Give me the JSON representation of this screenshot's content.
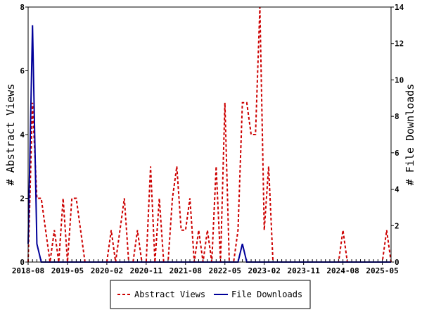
{
  "chart_data": {
    "type": "line",
    "title": "",
    "x_tick_labels": [
      "2018-08",
      "2019-05",
      "2020-02",
      "2020-11",
      "2021-08",
      "2022-05",
      "2023-02",
      "2023-11",
      "2024-08",
      "2025-05"
    ],
    "y_left": {
      "label": "# Abstract Views",
      "ylim": [
        0,
        8
      ],
      "ticks": [
        0,
        2,
        4,
        6,
        8
      ]
    },
    "y_right": {
      "label": "# File Downloads",
      "ylim": [
        0,
        14
      ],
      "ticks": [
        0,
        2,
        4,
        6,
        8,
        10,
        12,
        14
      ]
    },
    "x_start": "2018-08",
    "x_end": "2025-07",
    "legend_position": "bottom-center",
    "series": [
      {
        "name": "Abstract Views",
        "axis": "left",
        "color": "#cc0000",
        "style": "dashed",
        "x": [
          "2018-08",
          "2018-09",
          "2018-10",
          "2018-11",
          "2018-12",
          "2019-01",
          "2019-02",
          "2019-03",
          "2019-04",
          "2019-05",
          "2019-06",
          "2019-07",
          "2019-08",
          "2019-09",
          "2019-10",
          "2019-11",
          "2019-12",
          "2020-01",
          "2020-02",
          "2020-03",
          "2020-04",
          "2020-05",
          "2020-06",
          "2020-07",
          "2020-08",
          "2020-09",
          "2020-10",
          "2020-11",
          "2020-12",
          "2021-01",
          "2021-02",
          "2021-03",
          "2021-04",
          "2021-05",
          "2021-06",
          "2021-07",
          "2021-08",
          "2021-09",
          "2021-10",
          "2021-11",
          "2021-12",
          "2022-01",
          "2022-02",
          "2022-03",
          "2022-04",
          "2022-05",
          "2022-06",
          "2022-07",
          "2022-08",
          "2022-09",
          "2022-10",
          "2022-11",
          "2022-12",
          "2023-01",
          "2023-02",
          "2023-03",
          "2023-04",
          "2023-05",
          "2023-06",
          "2023-07",
          "2023-08",
          "2023-09",
          "2023-10",
          "2023-11",
          "2023-12",
          "2024-01",
          "2024-02",
          "2024-03",
          "2024-04",
          "2024-05",
          "2024-06",
          "2024-07",
          "2024-08",
          "2024-09",
          "2024-10",
          "2024-11",
          "2024-12",
          "2025-01",
          "2025-02",
          "2025-03",
          "2025-04",
          "2025-05",
          "2025-06",
          "2025-07"
        ],
        "values": [
          0,
          5,
          2,
          2,
          1,
          0,
          1,
          0,
          2,
          0,
          2,
          2,
          1,
          0,
          0,
          0,
          0,
          0,
          0,
          1,
          0,
          1,
          2,
          0,
          0,
          1,
          0,
          0,
          3,
          0,
          2,
          0,
          0,
          2,
          3,
          1,
          1,
          2,
          0,
          1,
          0,
          1,
          0,
          3,
          0,
          5,
          0,
          0,
          1,
          5,
          5,
          4,
          4,
          8,
          1,
          3,
          0,
          0,
          0,
          0,
          0,
          0,
          0,
          0,
          0,
          0,
          0,
          0,
          0,
          0,
          0,
          0,
          1,
          0,
          0,
          0,
          0,
          0,
          0,
          0,
          0,
          0,
          1,
          0
        ]
      },
      {
        "name": "File Downloads",
        "axis": "right",
        "color": "#000099",
        "style": "solid",
        "x": [
          "2018-08",
          "2018-09",
          "2018-10",
          "2018-11",
          "2018-12",
          "2019-01",
          "2019-02",
          "2019-03",
          "2019-04",
          "2019-05",
          "2019-06",
          "2019-07",
          "2019-08",
          "2019-09",
          "2019-10",
          "2019-11",
          "2019-12",
          "2020-01",
          "2020-02",
          "2020-03",
          "2020-04",
          "2020-05",
          "2020-06",
          "2020-07",
          "2020-08",
          "2020-09",
          "2020-10",
          "2020-11",
          "2020-12",
          "2021-01",
          "2021-02",
          "2021-03",
          "2021-04",
          "2021-05",
          "2021-06",
          "2021-07",
          "2021-08",
          "2021-09",
          "2021-10",
          "2021-11",
          "2021-12",
          "2022-01",
          "2022-02",
          "2022-03",
          "2022-04",
          "2022-05",
          "2022-06",
          "2022-07",
          "2022-08",
          "2022-09",
          "2022-10",
          "2022-11",
          "2022-12",
          "2023-01",
          "2023-02",
          "2023-03",
          "2023-04",
          "2023-05",
          "2023-06",
          "2023-07",
          "2023-08",
          "2023-09",
          "2023-10",
          "2023-11",
          "2023-12",
          "2024-01",
          "2024-02",
          "2024-03",
          "2024-04",
          "2024-05",
          "2024-06",
          "2024-07",
          "2024-08",
          "2024-09",
          "2024-10",
          "2024-11",
          "2024-12",
          "2025-01",
          "2025-02",
          "2025-03",
          "2025-04",
          "2025-05",
          "2025-06",
          "2025-07"
        ],
        "values": [
          1,
          13,
          1,
          0,
          0,
          0,
          0,
          0,
          0,
          0,
          0,
          0,
          0,
          0,
          0,
          0,
          0,
          0,
          0,
          0,
          0,
          0,
          0,
          0,
          0,
          0,
          0,
          0,
          0,
          0,
          0,
          0,
          0,
          0,
          0,
          0,
          0,
          0,
          0,
          0,
          0,
          0,
          0,
          0,
          0,
          0,
          0,
          0,
          0,
          1,
          0,
          0,
          0,
          0,
          0,
          0,
          0,
          0,
          0,
          0,
          0,
          0,
          0,
          0,
          0,
          0,
          0,
          0,
          0,
          0,
          0,
          0,
          0,
          0,
          0,
          0,
          0,
          0,
          0,
          0,
          0,
          0,
          0,
          0
        ]
      }
    ]
  }
}
